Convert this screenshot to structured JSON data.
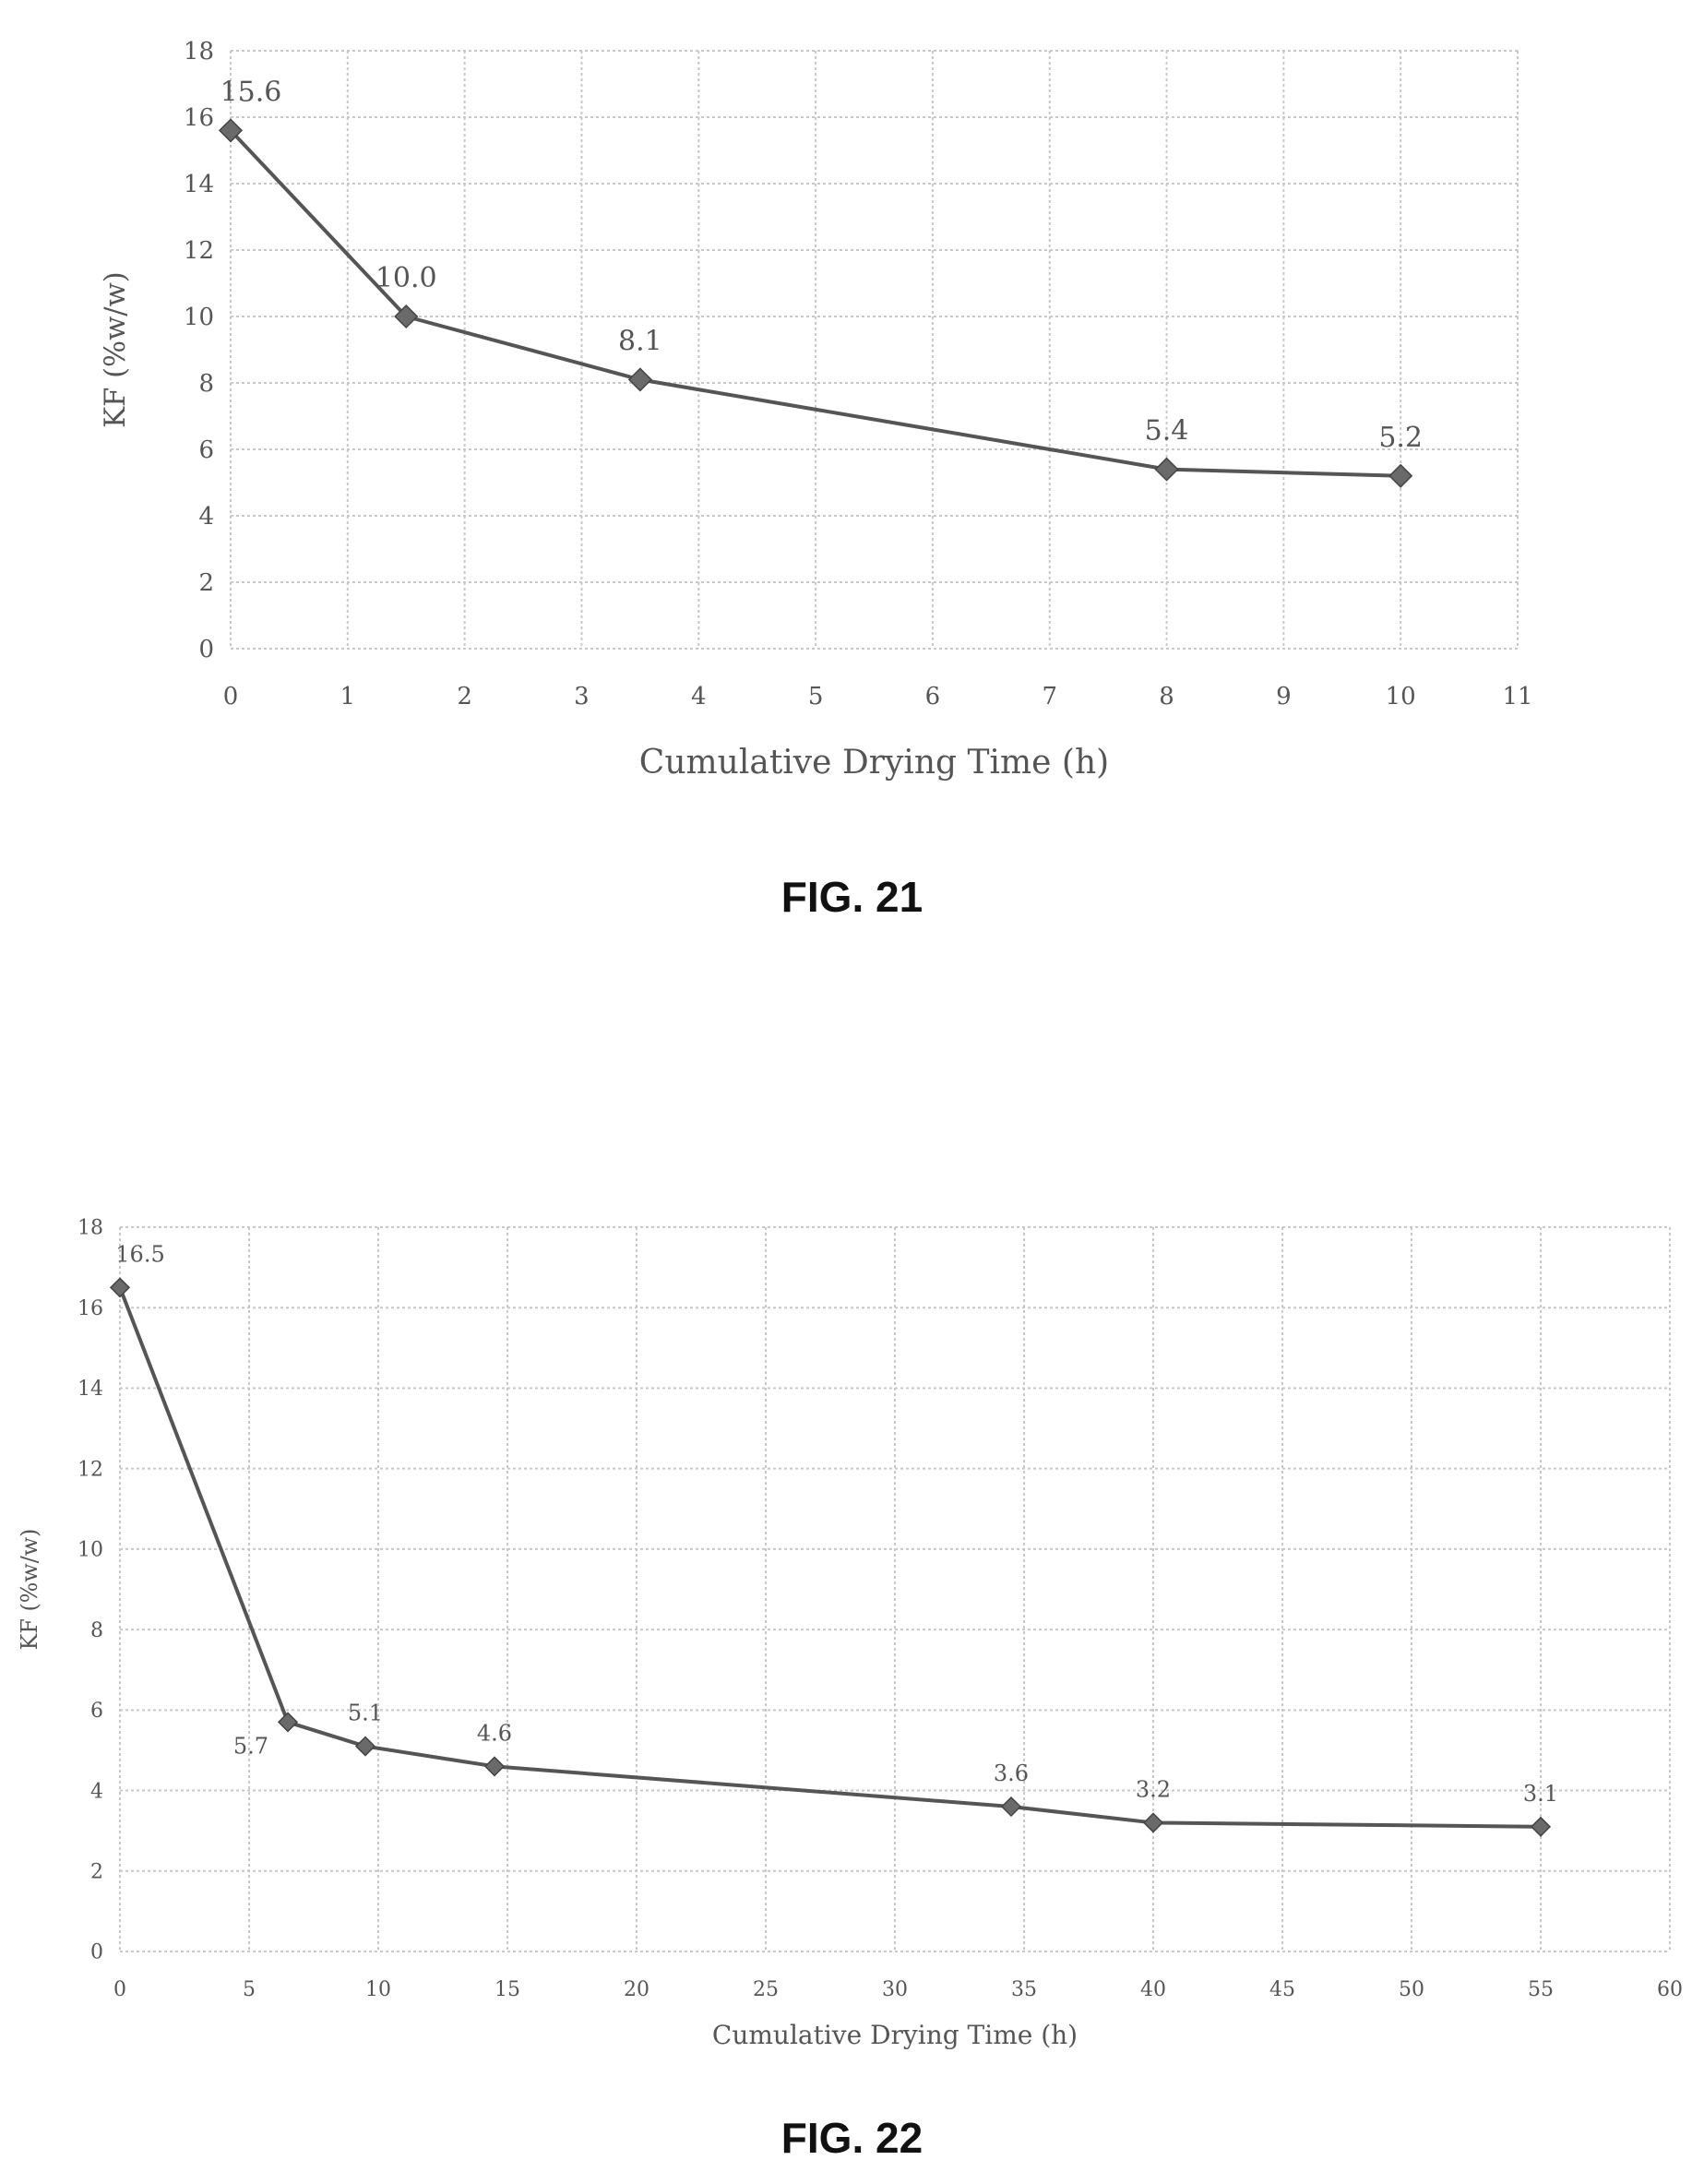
{
  "chart_data": [
    {
      "id": "fig21",
      "type": "line",
      "caption": "FIG. 21",
      "xlabel": "Cumulative Drying Time (h)",
      "ylabel": "KF (%w/w)",
      "xlim": [
        0,
        11
      ],
      "ylim": [
        0,
        18
      ],
      "xticks": [
        0,
        1,
        2,
        3,
        4,
        5,
        6,
        7,
        8,
        9,
        10,
        11
      ],
      "yticks": [
        0,
        2,
        4,
        6,
        8,
        10,
        12,
        14,
        16,
        18
      ],
      "grid": true,
      "series": [
        {
          "x": [
            0,
            1.5,
            3.5,
            8,
            10
          ],
          "y": [
            15.6,
            10.0,
            8.1,
            5.4,
            5.2
          ],
          "labels": [
            "15.6",
            "10.0",
            "8.1",
            "5.4",
            "5.2"
          ]
        }
      ]
    },
    {
      "id": "fig22",
      "type": "line",
      "caption": "FIG. 22",
      "xlabel": "Cumulative Drying Time (h)",
      "ylabel": "KF (%w/w)",
      "xlim": [
        0,
        60
      ],
      "ylim": [
        0,
        18
      ],
      "xticks": [
        0,
        5,
        10,
        15,
        20,
        25,
        30,
        35,
        40,
        45,
        50,
        55,
        60
      ],
      "yticks": [
        0,
        2,
        4,
        6,
        8,
        10,
        12,
        14,
        16,
        18
      ],
      "grid": true,
      "series": [
        {
          "x": [
            0,
            6.5,
            9.5,
            14.5,
            34.5,
            40,
            55
          ],
          "y": [
            16.5,
            5.7,
            5.1,
            4.6,
            3.6,
            3.2,
            3.1
          ],
          "labels": [
            "16.5",
            "5.7",
            "5.1",
            "4.6",
            "3.6",
            "3.2",
            "3.1"
          ]
        }
      ]
    }
  ],
  "colors": {
    "line": "#555555",
    "marker": "#6a6a6a",
    "grid": "#c8c8c8",
    "text": "#555555"
  }
}
